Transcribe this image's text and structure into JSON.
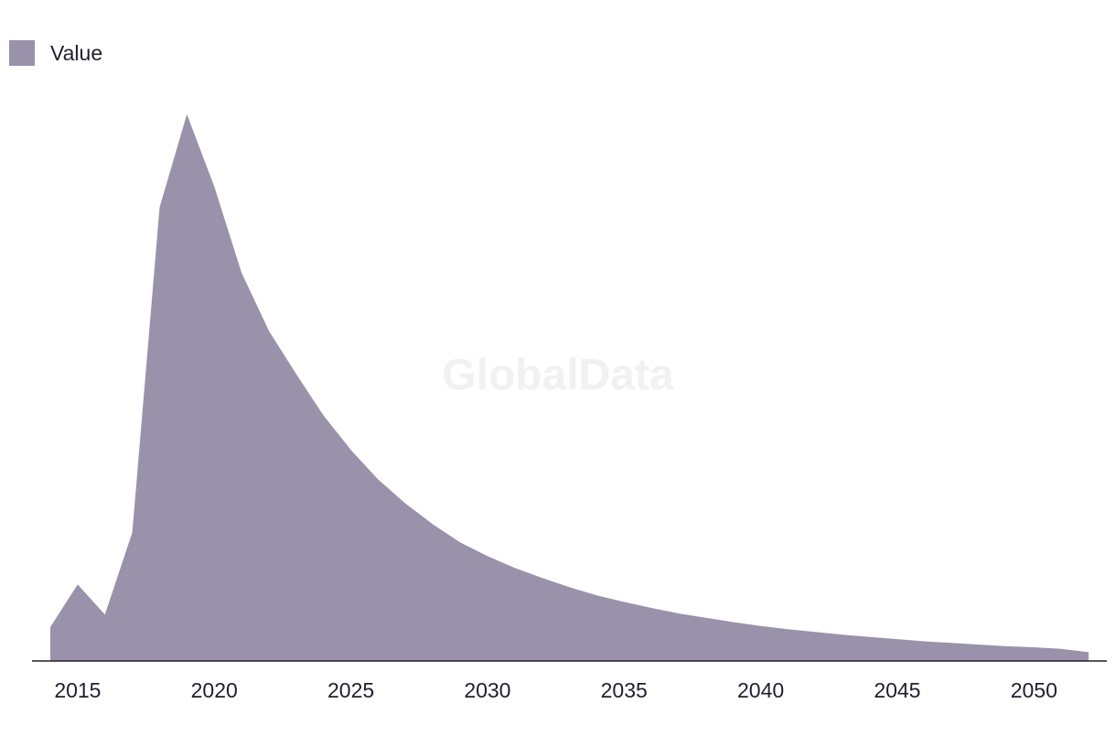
{
  "watermark": "GlobalData",
  "legend": {
    "label": "Value",
    "color": "#9a91aa"
  },
  "chart_data": {
    "type": "area",
    "title": "",
    "xlabel": "",
    "ylabel": "",
    "grid": false,
    "legend_position": "top-left",
    "x_ticks": [
      2015,
      2020,
      2025,
      2030,
      2035,
      2040,
      2045,
      2050
    ],
    "xlim": [
      2014,
      2052
    ],
    "ylim": [
      0,
      100
    ],
    "series": [
      {
        "name": "Value",
        "color": "#9a91aa",
        "x": [
          2014,
          2015,
          2016,
          2017,
          2018,
          2019,
          2020,
          2021,
          2022,
          2023,
          2024,
          2025,
          2026,
          2027,
          2028,
          2029,
          2030,
          2031,
          2032,
          2033,
          2034,
          2035,
          2036,
          2037,
          2038,
          2039,
          2040,
          2041,
          2042,
          2043,
          2044,
          2045,
          2046,
          2047,
          2048,
          2049,
          2050,
          2051,
          2052
        ],
        "values": [
          6.2,
          14.0,
          8.5,
          23.5,
          83.0,
          100.0,
          86.8,
          71.0,
          60.4,
          52.5,
          44.9,
          38.6,
          33.2,
          28.8,
          25.0,
          21.7,
          19.2,
          17.0,
          15.2,
          13.5,
          12.0,
          10.8,
          9.7,
          8.7,
          7.9,
          7.1,
          6.4,
          5.8,
          5.3,
          4.8,
          4.4,
          4.0,
          3.6,
          3.3,
          3.0,
          2.7,
          2.5,
          2.2,
          1.6
        ]
      }
    ]
  }
}
